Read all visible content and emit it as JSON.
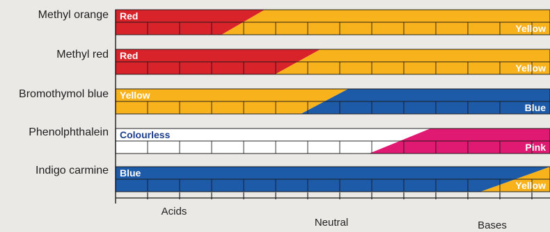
{
  "colors": {
    "Red": "#d9232b",
    "Yellow": "#f7b21c",
    "Blue": "#1d5aa8",
    "Pink": "#e01a73",
    "Colourless": "#ffffff"
  },
  "indicators": [
    {
      "name": "Methyl orange",
      "low_color": "Red",
      "high_color": "Yellow",
      "low_label": "Red",
      "high_label": "Yellow"
    },
    {
      "name": "Methyl red",
      "low_color": "Red",
      "high_color": "Yellow",
      "low_label": "Red",
      "high_label": "Yellow"
    },
    {
      "name": "Bromothymol blue",
      "low_color": "Yellow",
      "high_color": "Blue",
      "low_label": "Yellow",
      "high_label": "Blue"
    },
    {
      "name": "Phenolphthalein",
      "low_color": "Colourless",
      "high_color": "Pink",
      "low_label": "Colourless",
      "high_label": "Pink"
    },
    {
      "name": "Indigo carmine",
      "low_color": "Blue",
      "high_color": "Yellow",
      "low_label": "Blue",
      "high_label": "Yellow"
    }
  ],
  "zones": {
    "acids": "Acids",
    "neutral": "Neutral",
    "bases": "Bases"
  }
}
